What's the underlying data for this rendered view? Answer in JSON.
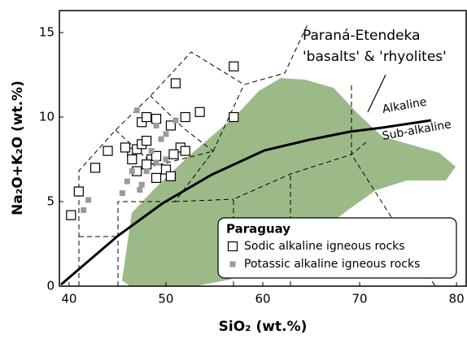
{
  "chart_data": {
    "type": "scatter",
    "xlabel": "SiO₂ (wt.%)",
    "ylabel": "Na₂O+K₂O (wt.%)",
    "xlim": [
      39,
      81
    ],
    "ylim": [
      0,
      16.3
    ],
    "xticks": [
      40,
      50,
      60,
      70,
      80
    ],
    "yticks": [
      0,
      5,
      10,
      15
    ],
    "grid": false,
    "annotations": [
      "Paraná-Etendeka",
      "'basalts' & 'rhyolites'",
      "Alkaline",
      "Sub-alkaline"
    ],
    "legend_title": "Paraguay",
    "legend_position": "lower right",
    "series": [
      {
        "name": "Sodic alkaline igneous rocks",
        "color": "#000000",
        "marker": "open-square",
        "x": [
          40.2,
          41,
          42.7,
          44,
          47,
          46.5,
          47,
          47.5,
          48,
          48.5,
          49,
          47.5,
          49,
          48,
          50,
          50.5,
          49,
          51.5,
          52,
          52,
          51,
          53.5,
          57,
          57,
          50.5,
          48,
          46.5,
          45.8,
          50.8
        ],
        "y": [
          4.2,
          5.6,
          7,
          8,
          6.8,
          7.9,
          8.1,
          8.4,
          8.6,
          7.5,
          7.7,
          9.7,
          9.9,
          10,
          6.9,
          6.5,
          6.4,
          8.2,
          8,
          10,
          12,
          10.3,
          13,
          10,
          9.5,
          7.2,
          7.5,
          8.2,
          7.8
        ]
      },
      {
        "name": "Potassic alkaline igneous rocks",
        "color": "#9a9a9a",
        "marker": "filled-square",
        "x": [
          42,
          41.5,
          45.5,
          46,
          47.5,
          48,
          49,
          50,
          47,
          49,
          49.5,
          50,
          48.5,
          46.5,
          51,
          47.3
        ],
        "y": [
          5.1,
          4.5,
          5.5,
          6.2,
          6,
          6.8,
          7.3,
          7.5,
          10.4,
          9.5,
          8.7,
          9,
          8,
          6.8,
          9.8,
          5.7
        ]
      }
    ]
  }
}
